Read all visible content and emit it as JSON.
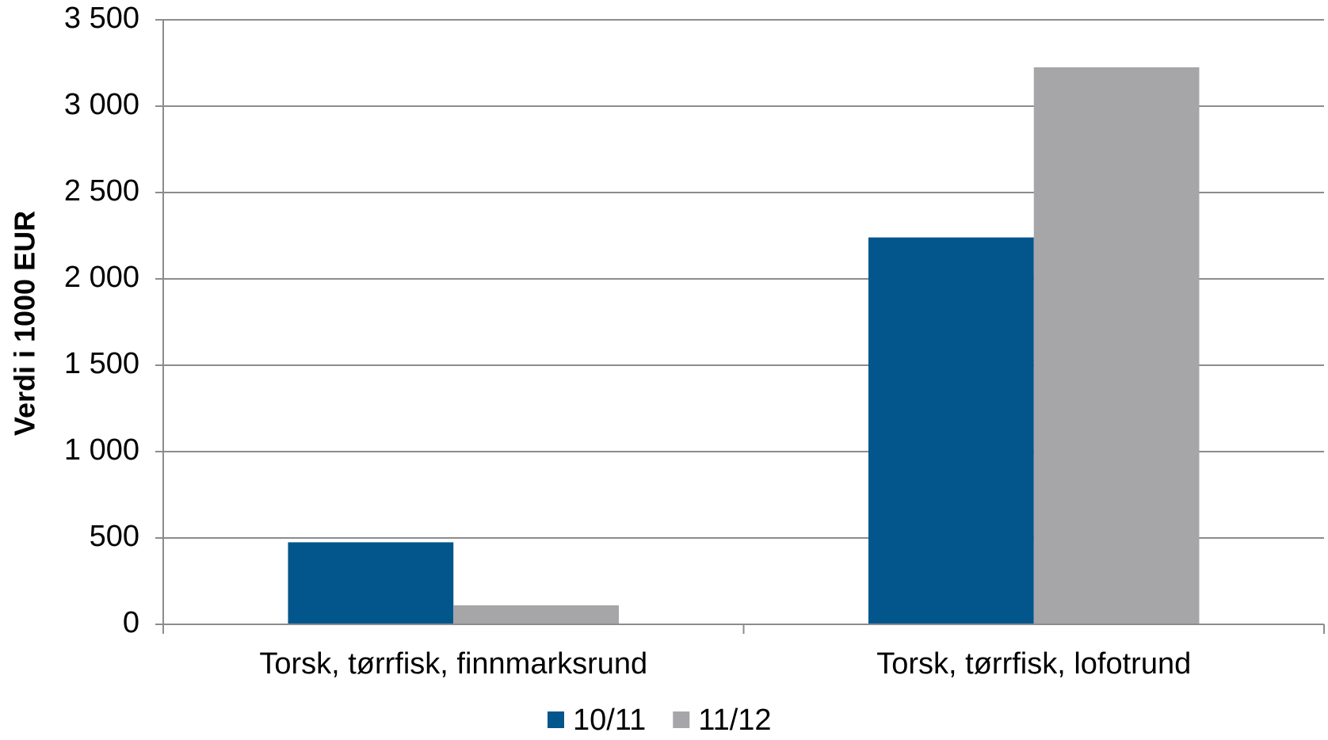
{
  "chart_data": {
    "type": "bar",
    "y_label": "Verdi i 1000 EUR",
    "categories": [
      "Torsk, tørrfisk, finnmarksrund",
      "Torsk, tørrfisk, lofotrund"
    ],
    "series": [
      {
        "name": "10/11",
        "color": "#02568c",
        "values": [
          475,
          2240
        ]
      },
      {
        "name": "11/12",
        "color": "#a6a6a8",
        "values": [
          110,
          3225
        ]
      }
    ],
    "ylim": [
      0,
      3500
    ],
    "yticks": [
      0,
      500,
      {
        "value": 1000,
        "label": "1 000"
      },
      {
        "value": 1500,
        "label": "1 500"
      },
      {
        "value": 2000,
        "label": "2 000"
      },
      {
        "value": 2500,
        "label": "2 500"
      },
      {
        "value": 3000,
        "label": "3 000"
      },
      {
        "value": 3500,
        "label": "3 500"
      }
    ],
    "grid": true,
    "legend": "bottom"
  }
}
